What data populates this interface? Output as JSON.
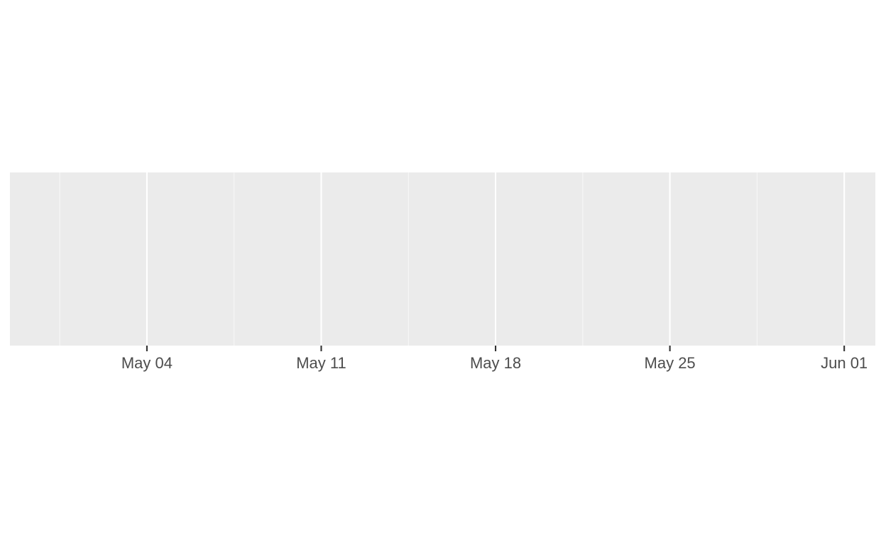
{
  "chart_data": {
    "type": "line",
    "title": "",
    "xlabel": "",
    "ylabel": "",
    "x": [],
    "series": [],
    "xlim": [
      "2026-04-28T12:00:00",
      "2026-06-02T06:00:00"
    ],
    "x_ticks": [
      {
        "date": "2026-05-04",
        "label": "May 04"
      },
      {
        "date": "2026-05-11",
        "label": "May 11"
      },
      {
        "date": "2026-05-18",
        "label": "May 18"
      },
      {
        "date": "2026-05-25",
        "label": "May 25"
      },
      {
        "date": "2026-06-01",
        "label": "Jun 01"
      }
    ],
    "x_minor_grid": [
      "2026-04-30T12:00:00",
      "2026-05-07T12:00:00",
      "2026-05-14T12:00:00",
      "2026-05-21T12:00:00",
      "2026-05-28T12:00:00"
    ],
    "y_axis_visible": false,
    "grid": true,
    "legend": "none",
    "colors": {
      "panel_background": "#EBEBEB",
      "grid_major": "#FFFFFF",
      "grid_minor": "#F7F7F7",
      "tick_mark": "#333333",
      "tick_label": "#4D4D4D"
    }
  }
}
